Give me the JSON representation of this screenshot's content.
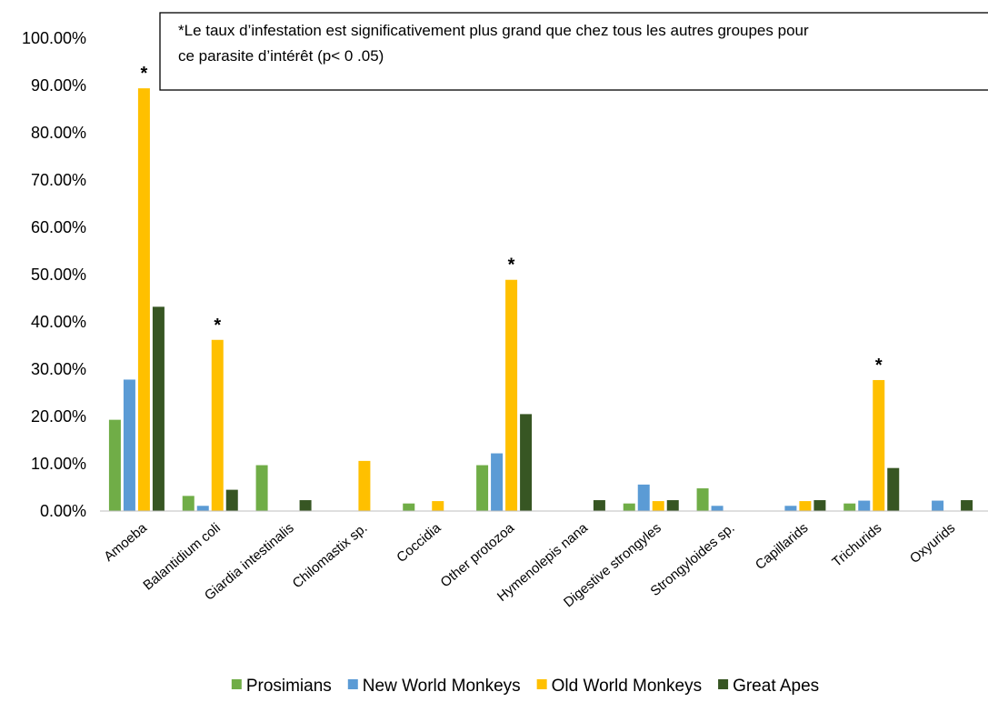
{
  "chart_data": {
    "type": "bar",
    "categories": [
      "Amoeba",
      "Balantidium coli",
      "Giardia  intestinalis",
      "Chilomastix sp.",
      "Coccidia",
      "Other protozoa",
      "Hymenolepis nana",
      "Digestive strongyles",
      "Strongyloides sp.",
      "Capillarids",
      "Trichurids",
      "Oxyurids"
    ],
    "series": [
      {
        "name": "Prosimians",
        "color": "#70ad47",
        "values": [
          19.3,
          3.2,
          9.7,
          0,
          1.6,
          9.7,
          0,
          1.6,
          4.8,
          0,
          1.6,
          0
        ]
      },
      {
        "name": "New World Monkeys",
        "color": "#5b9bd5",
        "values": [
          27.8,
          1.1,
          0,
          0,
          0,
          12.2,
          0,
          5.6,
          1.1,
          1.1,
          2.2,
          2.2
        ]
      },
      {
        "name": "Old World Monkeys",
        "color": "#ffc000",
        "values": [
          89.4,
          36.2,
          0,
          10.6,
          2.1,
          48.9,
          0,
          2.1,
          0,
          2.1,
          27.7,
          0
        ]
      },
      {
        "name": "Great Apes",
        "color": "#375623",
        "values": [
          43.2,
          4.5,
          2.3,
          0,
          0,
          20.5,
          2.3,
          2.3,
          0,
          2.3,
          9.1,
          2.3
        ]
      }
    ],
    "significant_markers": [
      {
        "category": "Amoeba",
        "series": "Old World Monkeys",
        "label": "*"
      },
      {
        "category": "Balantidium coli",
        "series": "Old World Monkeys",
        "label": "*"
      },
      {
        "category": "Other protozoa",
        "series": "Old World Monkeys",
        "label": "*"
      },
      {
        "category": "Trichurids",
        "series": "Old World Monkeys",
        "label": "*"
      }
    ],
    "yticks": [
      "0.00%",
      "10.00%",
      "20.00%",
      "30.00%",
      "40.00%",
      "50.00%",
      "60.00%",
      "70.00%",
      "80.00%",
      "90.00%",
      "100.00%"
    ],
    "ylim": [
      0,
      100
    ],
    "title": "",
    "xlabel": "",
    "ylabel": "",
    "grid": false,
    "legend_position": "bottom",
    "annotation": {
      "line1": "*Le taux d’infestation est significativement plus grand que chez tous les autres groupes pour",
      "line2": "ce parasite d’intérêt (p< 0 .05)"
    }
  }
}
